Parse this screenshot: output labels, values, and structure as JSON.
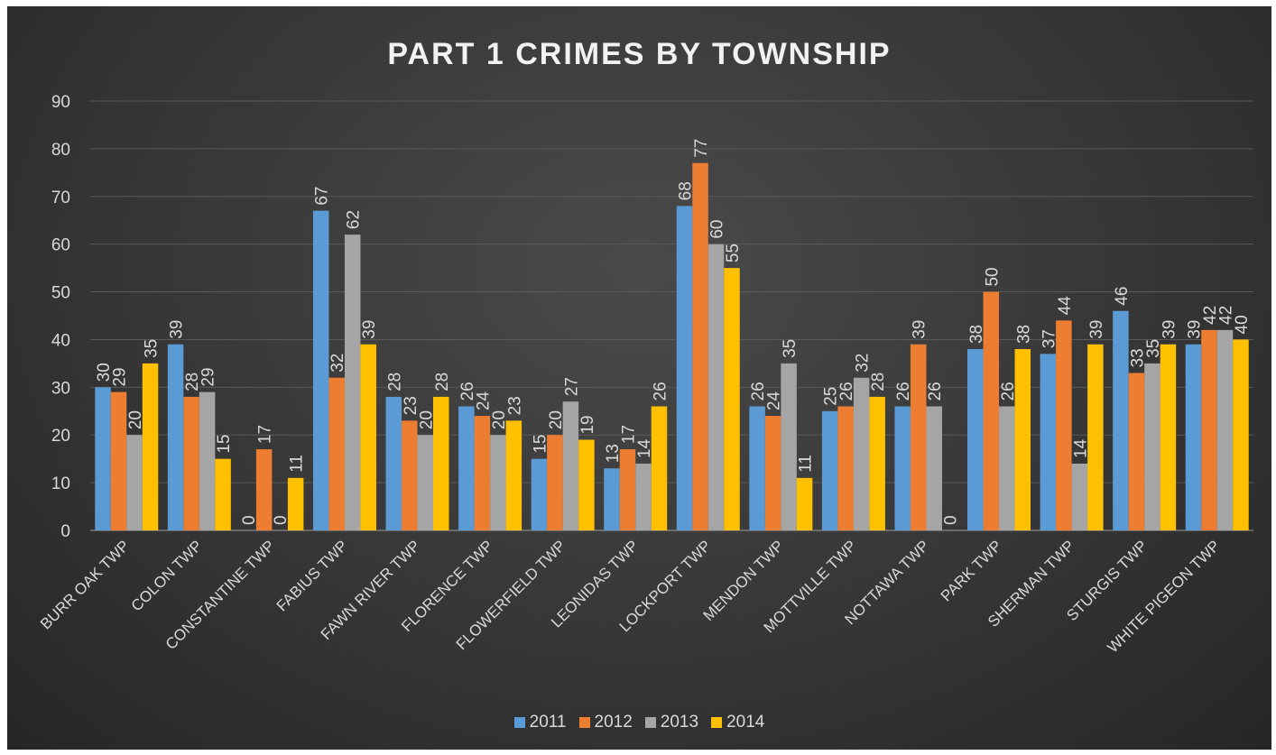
{
  "chart_data": {
    "type": "bar",
    "title": "PART 1 CRIMES BY TOWNSHIP",
    "xlabel": "",
    "ylabel": "",
    "ylim": [
      0,
      90
    ],
    "yticks": [
      0,
      10,
      20,
      30,
      40,
      50,
      60,
      70,
      80,
      90
    ],
    "grid": true,
    "legend_position": "bottom",
    "categories": [
      "BURR OAK TWP",
      "COLON TWP",
      "CONSTANTINE TWP",
      "FABIUS TWP",
      "FAWN RIVER TWP",
      "FLORENCE TWP",
      "FLOWERFIELD TWP",
      "LEONIDAS TWP",
      "LOCKPORT TWP",
      "MENDON TWP",
      "MOTTVILLE TWP",
      "NOTTAWA TWP",
      "PARK TWP",
      "SHERMAN TWP",
      "STURGIS TWP",
      "WHITE PIGEON TWP"
    ],
    "series": [
      {
        "name": "2011",
        "color": "#5b9bd5",
        "values": [
          30,
          39,
          0,
          67,
          28,
          26,
          15,
          13,
          68,
          26,
          25,
          26,
          38,
          37,
          46,
          39
        ]
      },
      {
        "name": "2012",
        "color": "#ed7d31",
        "values": [
          29,
          28,
          17,
          32,
          23,
          24,
          20,
          17,
          77,
          24,
          26,
          39,
          50,
          44,
          33,
          42
        ]
      },
      {
        "name": "2013",
        "color": "#a5a5a5",
        "values": [
          20,
          29,
          0,
          62,
          20,
          20,
          27,
          14,
          60,
          35,
          32,
          26,
          26,
          14,
          35,
          42
        ]
      },
      {
        "name": "2014",
        "color": "#ffc000",
        "values": [
          35,
          15,
          11,
          39,
          28,
          23,
          19,
          26,
          55,
          11,
          28,
          0,
          38,
          39,
          39,
          40
        ]
      }
    ]
  }
}
